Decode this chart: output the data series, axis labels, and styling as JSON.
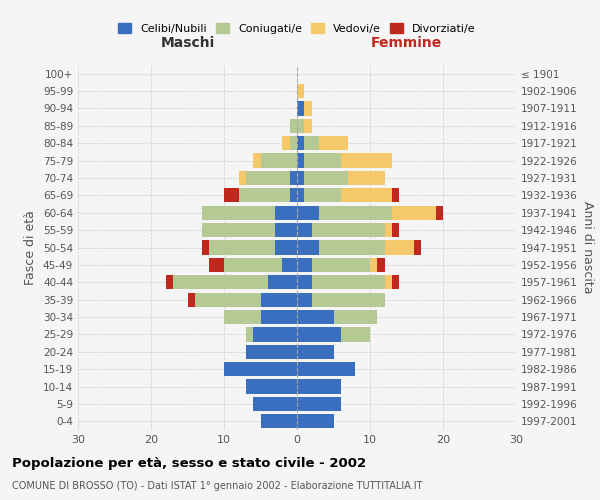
{
  "age_groups": [
    "0-4",
    "5-9",
    "10-14",
    "15-19",
    "20-24",
    "25-29",
    "30-34",
    "35-39",
    "40-44",
    "45-49",
    "50-54",
    "55-59",
    "60-64",
    "65-69",
    "70-74",
    "75-79",
    "80-84",
    "85-89",
    "90-94",
    "95-99",
    "100+"
  ],
  "birth_years": [
    "1997-2001",
    "1992-1996",
    "1987-1991",
    "1982-1986",
    "1977-1981",
    "1972-1976",
    "1967-1971",
    "1962-1966",
    "1957-1961",
    "1952-1956",
    "1947-1951",
    "1942-1946",
    "1937-1941",
    "1932-1936",
    "1927-1931",
    "1922-1926",
    "1917-1921",
    "1912-1916",
    "1907-1911",
    "1902-1906",
    "≤ 1901"
  ],
  "male": {
    "celibi": [
      5,
      6,
      7,
      10,
      7,
      6,
      5,
      5,
      4,
      2,
      3,
      3,
      3,
      1,
      1,
      0,
      0,
      0,
      0,
      0,
      0
    ],
    "coniugati": [
      0,
      0,
      0,
      0,
      0,
      1,
      5,
      9,
      13,
      8,
      9,
      10,
      10,
      7,
      6,
      5,
      1,
      1,
      0,
      0,
      0
    ],
    "vedovi": [
      0,
      0,
      0,
      0,
      0,
      0,
      0,
      0,
      0,
      0,
      0,
      0,
      0,
      0,
      1,
      1,
      1,
      0,
      0,
      0,
      0
    ],
    "divorziati": [
      0,
      0,
      0,
      0,
      0,
      0,
      0,
      1,
      1,
      2,
      1,
      0,
      0,
      2,
      0,
      0,
      0,
      0,
      0,
      0,
      0
    ]
  },
  "female": {
    "nubili": [
      5,
      6,
      6,
      8,
      5,
      6,
      5,
      2,
      2,
      2,
      3,
      2,
      3,
      1,
      1,
      1,
      1,
      0,
      1,
      0,
      0
    ],
    "coniugate": [
      0,
      0,
      0,
      0,
      0,
      4,
      6,
      10,
      10,
      8,
      9,
      10,
      10,
      5,
      6,
      5,
      2,
      1,
      0,
      0,
      0
    ],
    "vedove": [
      0,
      0,
      0,
      0,
      0,
      0,
      0,
      0,
      1,
      1,
      4,
      1,
      6,
      7,
      5,
      7,
      4,
      1,
      1,
      1,
      0
    ],
    "divorziate": [
      0,
      0,
      0,
      0,
      0,
      0,
      0,
      0,
      1,
      1,
      1,
      1,
      1,
      1,
      0,
      0,
      0,
      0,
      0,
      0,
      0
    ]
  },
  "colors": {
    "celibi": "#3a6fbf",
    "coniugati": "#b5c994",
    "vedovi": "#f5c96a",
    "divorziati": "#c0281e"
  },
  "xlim": 30,
  "title": "Popolazione per età, sesso e stato civile - 2002",
  "subtitle": "COMUNE DI BROSSO (TO) - Dati ISTAT 1° gennaio 2002 - Elaborazione TUTTITALIA.IT",
  "ylabel_left": "Fasce di età",
  "ylabel_right": "Anni di nascita",
  "xlabel_male": "Maschi",
  "xlabel_female": "Femmine",
  "legend_labels": [
    "Celibi/Nubili",
    "Coniugati/e",
    "Vedovi/e",
    "Divorziati/e"
  ],
  "bg_color": "#f5f5f5",
  "grid_color": "#cccccc"
}
